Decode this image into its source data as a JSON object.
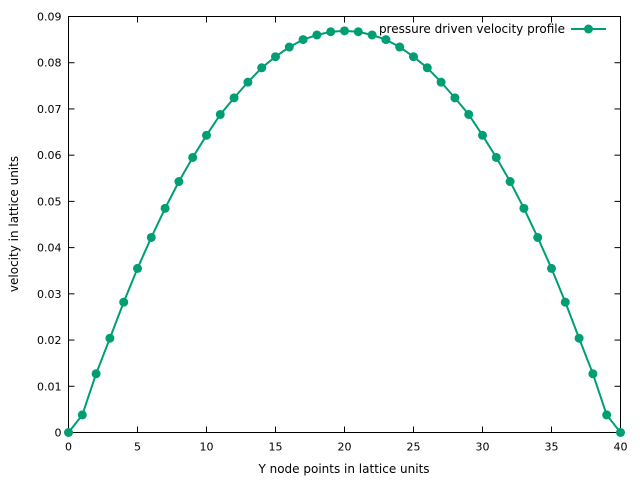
{
  "chart_data": {
    "type": "line",
    "title": "",
    "xlabel": "Y node points in lattice units",
    "ylabel": "velocity in lattice units",
    "xlim": [
      0,
      40
    ],
    "ylim": [
      0,
      0.09
    ],
    "x_ticks": [
      "0",
      "5",
      "10",
      "15",
      "20",
      "25",
      "30",
      "35",
      "40"
    ],
    "y_ticks": [
      "0",
      "0.01",
      "0.02",
      "0.03",
      "0.04",
      "0.05",
      "0.06",
      "0.07",
      "0.08",
      "0.09"
    ],
    "grid": false,
    "legend_position": "top-right",
    "series": [
      {
        "name": "pressure driven velocity profile",
        "color": "#009e73",
        "marker": "circle",
        "x": [
          0,
          1,
          2,
          3,
          4,
          5,
          6,
          7,
          8,
          9,
          10,
          11,
          12,
          13,
          14,
          15,
          16,
          17,
          18,
          19,
          20,
          21,
          22,
          23,
          24,
          25,
          26,
          27,
          28,
          29,
          30,
          31,
          32,
          33,
          34,
          35,
          36,
          37,
          38,
          39,
          40
        ],
        "values": [
          0.0,
          0.0038,
          0.0127,
          0.0204,
          0.0282,
          0.0355,
          0.0422,
          0.0485,
          0.0543,
          0.0595,
          0.0643,
          0.0688,
          0.0724,
          0.0758,
          0.0789,
          0.0813,
          0.0834,
          0.085,
          0.086,
          0.0867,
          0.0869,
          0.0867,
          0.086,
          0.085,
          0.0834,
          0.0813,
          0.0789,
          0.0758,
          0.0724,
          0.0688,
          0.0643,
          0.0595,
          0.0543,
          0.0485,
          0.0422,
          0.0355,
          0.0282,
          0.0204,
          0.0127,
          0.0038,
          0.0
        ]
      }
    ]
  }
}
